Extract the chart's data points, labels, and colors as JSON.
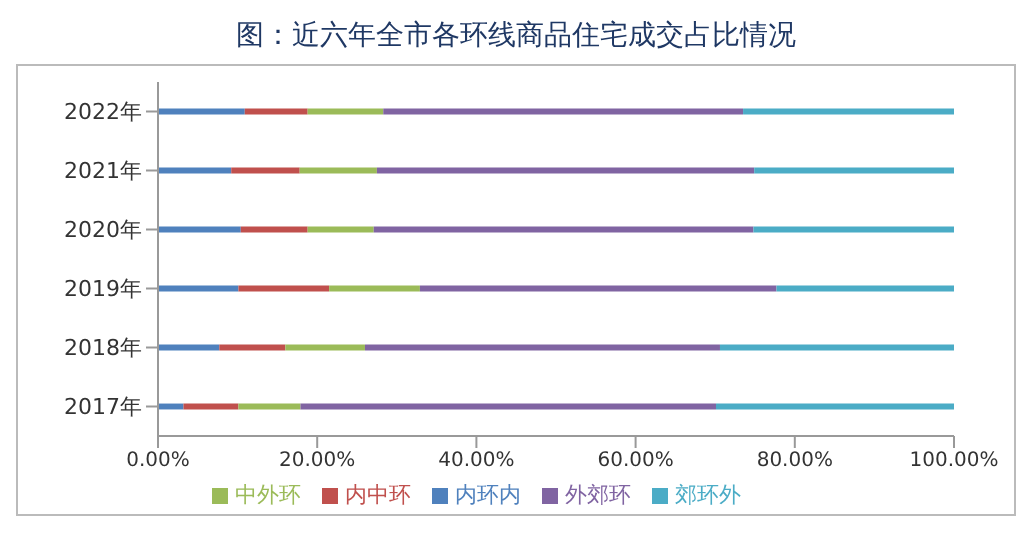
{
  "chart_data": {
    "type": "bar",
    "orientation": "horizontal",
    "stacked": true,
    "title": "图：近六年全市各环线商品住宅成交占比情况",
    "categories": [
      "2022年",
      "2021年",
      "2020年",
      "2019年",
      "2018年",
      "2017年"
    ],
    "series": [
      {
        "name": "内环内",
        "color": "#4f81bd",
        "values": [
          10.9,
          9.2,
          10.4,
          10.1,
          7.7,
          3.2
        ]
      },
      {
        "name": "内中环",
        "color": "#c0504d",
        "values": [
          7.9,
          8.6,
          8.4,
          11.4,
          8.3,
          6.9
        ]
      },
      {
        "name": "中外环",
        "color": "#9bbb59",
        "values": [
          9.5,
          9.7,
          8.3,
          11.4,
          10.0,
          7.8
        ]
      },
      {
        "name": "外郊环",
        "color": "#8064a2",
        "values": [
          45.2,
          47.4,
          47.7,
          44.8,
          44.6,
          52.2
        ]
      },
      {
        "name": "郊环外",
        "color": "#4bacc6",
        "values": [
          26.5,
          25.1,
          25.2,
          22.3,
          29.4,
          29.9
        ]
      }
    ],
    "xlim": [
      0,
      100
    ],
    "xticks": [
      {
        "value": 0,
        "label": "0.00%"
      },
      {
        "value": 20,
        "label": "20.00%"
      },
      {
        "value": 40,
        "label": "40.00%"
      },
      {
        "value": 60,
        "label": "60.00%"
      },
      {
        "value": 80,
        "label": "80.00%"
      },
      {
        "value": 100,
        "label": "100.00%"
      }
    ],
    "legend": "bottom",
    "grid": false
  }
}
